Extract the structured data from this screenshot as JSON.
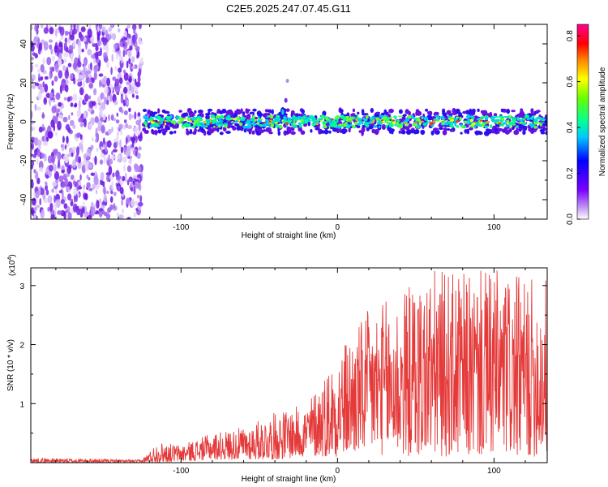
{
  "title": "C2E5.2025.247.07.45.G11",
  "colors": {
    "trace": "#e53a3a",
    "axis": "#000000",
    "background": "#ffffff",
    "noise": "#7a2ee6"
  },
  "chart_data": [
    {
      "type": "heatmap",
      "title": "C2E5.2025.247.07.45.G11",
      "xlabel": "Height of straight line (km)",
      "ylabel": "Frequency (Hz)",
      "xlim": [
        -196,
        134
      ],
      "ylim": [
        -50,
        50
      ],
      "x_ticks": [
        -100,
        0,
        100
      ],
      "x_tick_labels": [
        "-100",
        "0",
        "100"
      ],
      "y_ticks": [
        -40,
        -20,
        0,
        20,
        40
      ],
      "y_tick_labels": [
        "-40",
        "-20",
        "0",
        "20",
        "40"
      ],
      "noise_region_x": [
        -196,
        -125
      ],
      "signal_band": {
        "x_range": [
          -125,
          134
        ],
        "center_hz": 0,
        "half_width_hz": 5
      },
      "secondary_feature": {
        "x": -35,
        "y_hz": 5
      },
      "colorbar": {
        "label": "Normalized spectral amplitude",
        "range": [
          0.0,
          0.85
        ],
        "ticks": [
          0.0,
          0.2,
          0.4,
          0.6,
          0.8
        ],
        "tick_labels": [
          "0.0",
          "0.2",
          "0.4",
          "0.6",
          "0.8"
        ]
      }
    },
    {
      "type": "line",
      "xlabel": "Height of straight line (km)",
      "ylabel": "SNR (10 * v/v)",
      "scale_label": "(x10",
      "scale_exponent": "4",
      "scale_close": ")",
      "xlim": [
        -196,
        134
      ],
      "ylim": [
        0,
        3.3
      ],
      "x_ticks": [
        -100,
        0,
        100
      ],
      "x_tick_labels": [
        "-100",
        "0",
        "100"
      ],
      "y_ticks": [
        1,
        2,
        3
      ],
      "y_tick_labels": [
        "1",
        "2",
        "3"
      ],
      "series": [
        {
          "name": "SNR",
          "envelope_x": [
            -196,
            -125,
            -115,
            -100,
            -80,
            -60,
            -40,
            -20,
            0,
            20,
            40,
            60,
            80,
            100,
            120,
            134
          ],
          "envelope_max": [
            0.08,
            0.05,
            0.35,
            0.3,
            0.5,
            0.6,
            0.85,
            1.0,
            1.9,
            2.6,
            2.9,
            3.3,
            3.2,
            3.3,
            3.1,
            3.2
          ],
          "envelope_min": [
            0.0,
            0.0,
            0.0,
            0.02,
            0.05,
            0.05,
            0.05,
            0.1,
            0.1,
            0.15,
            0.1,
            0.1,
            0.1,
            0.1,
            0.1,
            0.1
          ]
        }
      ]
    }
  ]
}
